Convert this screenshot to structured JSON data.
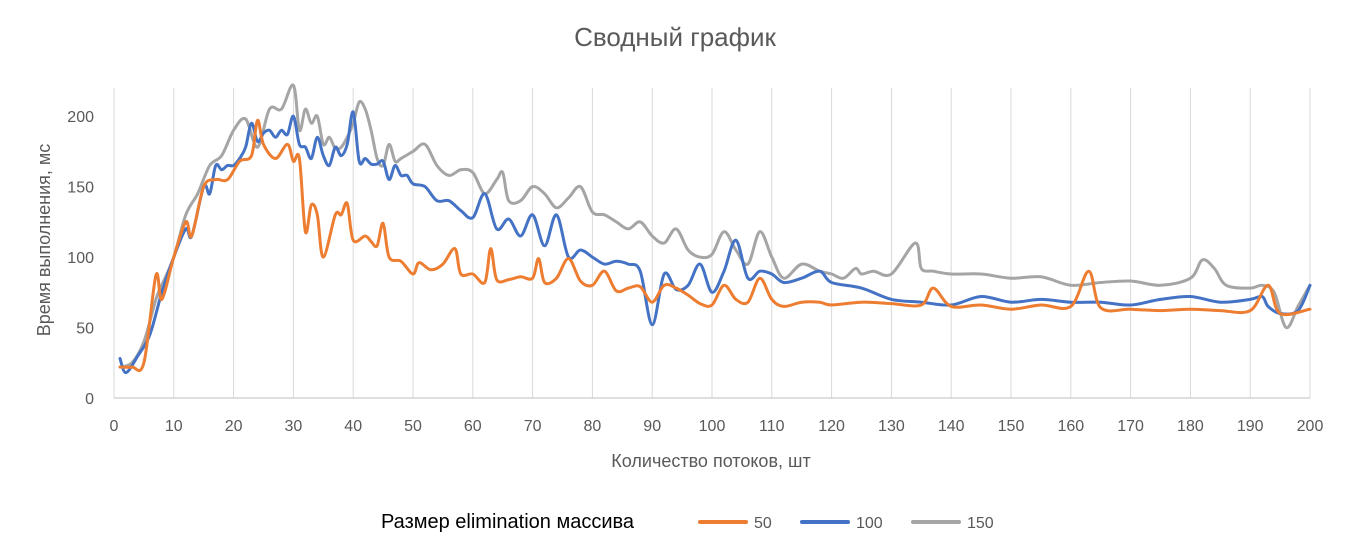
{
  "chart_data": {
    "type": "line",
    "title": "Сводный график",
    "xlabel": "Количество потоков, шт",
    "ylabel": "Время выполнения, мс",
    "xlim": [
      0,
      200
    ],
    "ylim": [
      0,
      220
    ],
    "x_ticks": [
      0,
      10,
      20,
      30,
      40,
      50,
      60,
      70,
      80,
      90,
      100,
      110,
      120,
      130,
      140,
      150,
      160,
      170,
      180,
      190,
      200
    ],
    "y_ticks": [
      0,
      50,
      100,
      150,
      200
    ],
    "grid": "vertical",
    "legend": {
      "title": "Размер elimination массива",
      "position": "bottom"
    },
    "colors": {
      "s50": "#ED7D31",
      "s100": "#4472C4",
      "s150": "#A5A5A5",
      "grid": "#D9D9D9",
      "text": "#595959"
    },
    "series": [
      {
        "name": "50",
        "color": "#ED7D31",
        "x": [
          1,
          3,
          5,
          7,
          8,
          10,
          12,
          13,
          15,
          17,
          19,
          21,
          23,
          24,
          25,
          27,
          29,
          30,
          31,
          32,
          33,
          34,
          35,
          37,
          38,
          39,
          40,
          42,
          43,
          44,
          45,
          46,
          48,
          50,
          51,
          53,
          55,
          57,
          58,
          60,
          62,
          63,
          64,
          66,
          68,
          70,
          71,
          72,
          74,
          76,
          78,
          80,
          82,
          84,
          86,
          88,
          90,
          92,
          94,
          96,
          98,
          100,
          102,
          104,
          106,
          108,
          110,
          112,
          115,
          118,
          120,
          125,
          130,
          135,
          137,
          140,
          145,
          150,
          155,
          160,
          163,
          165,
          170,
          175,
          180,
          185,
          190,
          193,
          195,
          200
        ],
        "y": [
          22,
          22,
          25,
          87,
          70,
          100,
          125,
          115,
          150,
          155,
          155,
          168,
          172,
          197,
          180,
          170,
          180,
          168,
          170,
          118,
          137,
          130,
          100,
          130,
          130,
          138,
          112,
          115,
          111,
          108,
          124,
          100,
          97,
          88,
          96,
          91,
          95,
          106,
          88,
          88,
          82,
          106,
          84,
          84,
          86,
          85,
          99,
          82,
          85,
          99,
          83,
          80,
          90,
          76,
          78,
          79,
          68,
          80,
          78,
          73,
          67,
          66,
          80,
          70,
          68,
          85,
          70,
          65,
          68,
          68,
          66,
          68,
          67,
          66,
          78,
          65,
          66,
          63,
          66,
          65,
          90,
          64,
          63,
          62,
          63,
          62,
          62,
          80,
          60,
          63
        ]
      },
      {
        "name": "100",
        "color": "#4472C4",
        "x": [
          1,
          2,
          4,
          6,
          8,
          10,
          12,
          13,
          15,
          16,
          17,
          18,
          19,
          20,
          21,
          22,
          23,
          24,
          25,
          26,
          27,
          28,
          29,
          30,
          31,
          32,
          33,
          34,
          35,
          36,
          37,
          38,
          39,
          40,
          41,
          42,
          43,
          44,
          45,
          46,
          47,
          48,
          49,
          50,
          52,
          54,
          56,
          58,
          60,
          62,
          64,
          66,
          68,
          70,
          72,
          74,
          76,
          78,
          80,
          82,
          84,
          86,
          88,
          90,
          92,
          94,
          96,
          98,
          100,
          102,
          104,
          106,
          108,
          110,
          112,
          115,
          118,
          120,
          125,
          130,
          135,
          140,
          145,
          150,
          155,
          160,
          165,
          170,
          175,
          180,
          185,
          190,
          192,
          193,
          195,
          198,
          200
        ],
        "y": [
          28,
          18,
          30,
          45,
          75,
          100,
          120,
          115,
          150,
          145,
          165,
          162,
          165,
          165,
          170,
          178,
          195,
          182,
          188,
          190,
          185,
          190,
          187,
          200,
          180,
          178,
          170,
          185,
          172,
          165,
          178,
          172,
          180,
          203,
          168,
          170,
          166,
          166,
          168,
          155,
          165,
          158,
          158,
          152,
          150,
          140,
          140,
          133,
          128,
          145,
          120,
          127,
          115,
          130,
          108,
          130,
          100,
          105,
          100,
          95,
          97,
          95,
          90,
          52,
          88,
          77,
          80,
          95,
          75,
          90,
          112,
          85,
          90,
          88,
          82,
          85,
          90,
          82,
          78,
          70,
          68,
          66,
          72,
          68,
          70,
          68,
          68,
          66,
          70,
          72,
          68,
          70,
          72,
          65,
          60,
          62,
          80
        ]
      },
      {
        "name": "150",
        "color": "#A5A5A5",
        "x": [
          1,
          3,
          5,
          7,
          8,
          10,
          12,
          14,
          16,
          18,
          20,
          22,
          24,
          26,
          28,
          30,
          31,
          32,
          33,
          34,
          35,
          36,
          37,
          38,
          39,
          40,
          41,
          42,
          43,
          44,
          45,
          46,
          47,
          48,
          50,
          52,
          54,
          56,
          58,
          60,
          62,
          64,
          65,
          66,
          68,
          70,
          72,
          74,
          76,
          78,
          80,
          82,
          84,
          86,
          88,
          90,
          92,
          94,
          96,
          98,
          100,
          102,
          104,
          106,
          108,
          110,
          112,
          115,
          118,
          120,
          122,
          124,
          125,
          127,
          130,
          134,
          135,
          137,
          140,
          145,
          150,
          155,
          160,
          165,
          170,
          175,
          180,
          182,
          184,
          186,
          190,
          192,
          194,
          196,
          198,
          200
        ],
        "y": [
          22,
          25,
          40,
          70,
          80,
          100,
          130,
          145,
          165,
          172,
          190,
          198,
          178,
          205,
          205,
          222,
          190,
          205,
          195,
          200,
          180,
          185,
          177,
          178,
          185,
          195,
          210,
          205,
          190,
          170,
          165,
          180,
          168,
          170,
          175,
          180,
          165,
          158,
          162,
          160,
          145,
          155,
          160,
          140,
          140,
          150,
          145,
          135,
          142,
          150,
          132,
          130,
          125,
          120,
          125,
          115,
          110,
          120,
          105,
          100,
          102,
          118,
          105,
          95,
          118,
          100,
          85,
          95,
          90,
          88,
          85,
          92,
          88,
          90,
          88,
          110,
          92,
          90,
          88,
          88,
          85,
          86,
          80,
          82,
          83,
          80,
          85,
          98,
          92,
          80,
          78,
          80,
          75,
          50,
          65,
          80
        ]
      }
    ]
  }
}
